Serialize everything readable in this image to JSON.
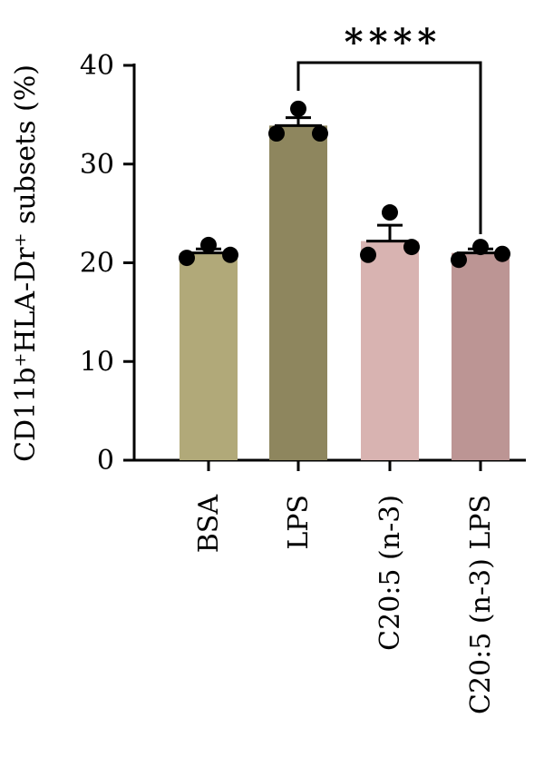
{
  "chart_data": {
    "type": "bar",
    "ylabel": "CD11b⁺HLA-Dr⁺ subsets (%)",
    "ylim": [
      0,
      40
    ],
    "yticks": [
      0,
      10,
      20,
      30,
      40
    ],
    "categories": [
      "BSA",
      "LPS",
      "C20:5 (n-3)",
      "C20:5 (n-3) LPS"
    ],
    "values": [
      21.0,
      33.9,
      22.2,
      21.0
    ],
    "errors": [
      0.4,
      0.8,
      1.6,
      0.4
    ],
    "points": [
      [
        20.5,
        21.8,
        20.8
      ],
      [
        33.1,
        35.6,
        33.1
      ],
      [
        20.8,
        25.1,
        21.6
      ],
      [
        20.3,
        21.6,
        20.9
      ]
    ],
    "bar_colors": [
      "#b1a979",
      "#8e865e",
      "#d8b3b1",
      "#bc9594"
    ],
    "comparison": {
      "from_index": 1,
      "to_index": 3,
      "label": "****"
    },
    "grid": false,
    "legend": "none"
  }
}
